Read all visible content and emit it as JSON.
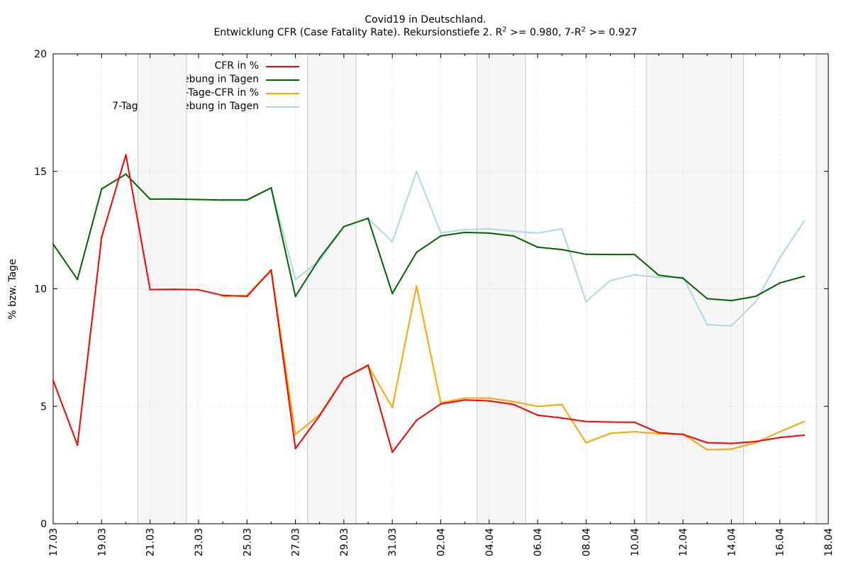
{
  "chart_data": {
    "type": "line",
    "title": "Covid19 in Deutschland.",
    "subtitle_parts": {
      "prefix": "Entwicklung CFR (Case Fatality Rate). Rekursionstiefe 2. R",
      "sup1": "2",
      "middle": " >= 0.980, 7-R",
      "sup2": "2",
      "suffix": " >= 0.927"
    },
    "ylabel": "% bzw. Tage",
    "xlabel": "",
    "ylim": [
      0,
      20
    ],
    "yticks": [
      0,
      5,
      10,
      15,
      20
    ],
    "x_range_days": [
      0,
      32
    ],
    "xtick_labels": [
      "17.03",
      "19.03",
      "21.03",
      "23.03",
      "25.03",
      "27.03",
      "29.03",
      "31.03",
      "02.04",
      "04.04",
      "06.04",
      "08.04",
      "10.04",
      "12.04",
      "14.04",
      "16.04",
      "18.04"
    ],
    "grid": true,
    "legend_position": "top-left",
    "weekend_shading": [
      [
        3.5,
        5.5
      ],
      [
        10.5,
        12.5
      ],
      [
        17.5,
        19.5
      ],
      [
        24.5,
        28.5
      ],
      [
        31.5,
        32
      ]
    ],
    "series": [
      {
        "name": "CFR in %",
        "color": "#ff0000",
        "x": [
          0,
          1,
          2,
          3,
          4,
          5,
          6,
          7,
          8,
          9,
          10,
          11,
          12,
          13,
          14,
          15,
          16,
          17,
          18,
          19,
          20,
          21,
          22,
          23,
          24,
          25,
          26,
          27,
          28,
          29,
          30,
          31
        ],
        "values": [
          6.1,
          3.35,
          12.2,
          15.7,
          9.97,
          9.98,
          9.96,
          9.72,
          9.68,
          10.8,
          3.2,
          4.6,
          6.2,
          6.75,
          3.05,
          4.4,
          5.1,
          5.27,
          5.23,
          5.08,
          4.62,
          4.5,
          4.35,
          4.33,
          4.32,
          3.88,
          3.8,
          3.45,
          3.42,
          3.5,
          3.67,
          3.77
        ]
      },
      {
        "name": "Verschiebung in Tagen",
        "color": "#006400",
        "x": [
          0,
          1,
          2,
          3,
          4,
          5,
          6,
          7,
          8,
          9,
          10,
          11,
          12,
          13,
          14,
          15,
          16,
          17,
          18,
          19,
          20,
          21,
          22,
          23,
          24,
          25,
          26,
          27,
          28,
          29,
          30,
          31
        ],
        "values": [
          11.9,
          10.4,
          14.25,
          14.88,
          13.82,
          13.82,
          13.8,
          13.78,
          13.78,
          14.3,
          9.68,
          11.3,
          12.65,
          13.0,
          9.8,
          11.55,
          12.25,
          12.4,
          12.37,
          12.25,
          11.77,
          11.67,
          11.47,
          11.46,
          11.46,
          10.58,
          10.45,
          9.58,
          9.5,
          9.68,
          10.25,
          10.53
        ]
      },
      {
        "name": "7-Tage-CFR in %",
        "color": "#ffa500",
        "x": [
          7,
          8,
          9,
          10,
          11,
          12,
          13,
          14,
          15,
          16,
          17,
          18,
          19,
          20,
          21,
          22,
          23,
          24,
          25,
          26,
          27,
          28,
          29,
          30,
          31
        ],
        "values": [
          9.68,
          9.72,
          10.8,
          3.8,
          4.65,
          6.2,
          6.72,
          4.95,
          10.12,
          5.15,
          5.35,
          5.35,
          5.2,
          5.0,
          5.07,
          3.45,
          3.85,
          3.92,
          3.84,
          3.82,
          3.15,
          3.18,
          3.45,
          3.92,
          4.35
        ]
      },
      {
        "name": "7-Tage-Verschiebung in Tagen",
        "color": "#add8e6",
        "x": [
          7,
          8,
          9,
          10,
          11,
          12,
          13,
          14,
          15,
          16,
          17,
          18,
          19,
          20,
          21,
          22,
          23,
          24,
          25,
          26,
          27,
          28,
          29,
          30,
          31
        ],
        "values": [
          13.8,
          13.8,
          14.3,
          10.4,
          11.2,
          12.65,
          13.0,
          12.0,
          15.0,
          12.38,
          12.52,
          12.55,
          12.45,
          12.37,
          12.55,
          9.45,
          10.35,
          10.6,
          10.48,
          10.5,
          8.47,
          8.42,
          9.45,
          11.32,
          12.88
        ]
      }
    ]
  }
}
